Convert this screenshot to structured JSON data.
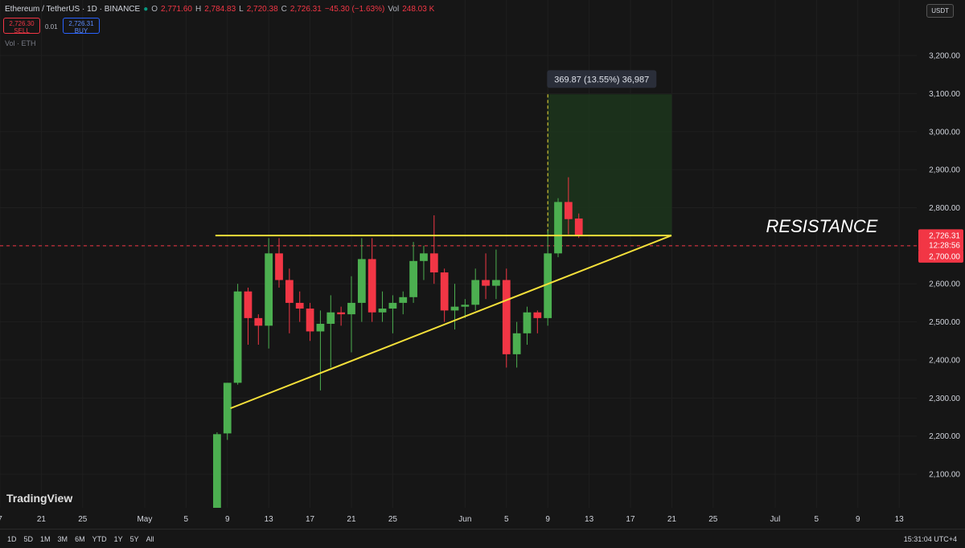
{
  "header": {
    "symbol": "Ethereum / TetherUS · 1D · BINANCE",
    "o_key": "O",
    "o": "2,771.60",
    "h_key": "H",
    "h": "2,784.83",
    "l_key": "L",
    "l": "2,720.38",
    "c_key": "C",
    "c": "2,726.31",
    "change": "−45.30 (−1.63%)",
    "vol_key": "Vol",
    "vol": "248.03 K",
    "sell_price": "2,726.30",
    "sell": "SELL",
    "qty": "0.01",
    "buy_price": "2,726.31",
    "buy": "BUY",
    "vol_indicator": "Vol · ETH",
    "currency": "USDT",
    "logo": "TradingView"
  },
  "toolbar": {
    "timeframes": [
      "1D",
      "5D",
      "1M",
      "3M",
      "6M",
      "YTD",
      "1Y",
      "5Y",
      "All"
    ],
    "time": "15:31:04 UTC+4"
  },
  "chart_data": {
    "type": "candlestick",
    "x": [
      0,
      1,
      2,
      3,
      4,
      5,
      6,
      7,
      8,
      9,
      10,
      11,
      12,
      13,
      14,
      15,
      16,
      17,
      18,
      19,
      20,
      21,
      22,
      23,
      24,
      25,
      26,
      27,
      28,
      29,
      30,
      31,
      32,
      33,
      34,
      35
    ],
    "open": [
      2010,
      2207,
      2340,
      2580,
      2510,
      2490,
      2680,
      2610,
      2550,
      2535,
      2475,
      2495,
      2525,
      2520,
      2550,
      2665,
      2525,
      2535,
      2550,
      2565,
      2660,
      2680,
      2630,
      2530,
      2540,
      2545,
      2610,
      2595,
      2610,
      2415,
      2470,
      2525,
      2510,
      2680,
      2815,
      2771.6
    ],
    "high": [
      2210,
      2340,
      2600,
      2590,
      2520,
      2720,
      2720,
      2640,
      2580,
      2550,
      2530,
      2570,
      2540,
      2620,
      2720,
      2720,
      2580,
      2570,
      2580,
      2710,
      2700,
      2780,
      2640,
      2600,
      2560,
      2640,
      2680,
      2690,
      2640,
      2500,
      2540,
      2530,
      2740,
      2825,
      2880,
      2784.83
    ],
    "low": [
      2010,
      2190,
      2335,
      2440,
      2440,
      2430,
      2590,
      2470,
      2500,
      2450,
      2320,
      2380,
      2490,
      2420,
      2500,
      2500,
      2500,
      2470,
      2520,
      2550,
      2610,
      2600,
      2500,
      2480,
      2510,
      2530,
      2560,
      2560,
      2380,
      2380,
      2440,
      2470,
      2490,
      2670,
      2730,
      2720.38
    ],
    "close": [
      2205,
      2340,
      2580,
      2510,
      2490,
      2680,
      2610,
      2550,
      2535,
      2475,
      2495,
      2525,
      2520,
      2550,
      2665,
      2525,
      2535,
      2550,
      2565,
      2660,
      2680,
      2630,
      2530,
      2540,
      2545,
      2610,
      2595,
      2610,
      2415,
      2470,
      2525,
      2510,
      2680,
      2815,
      2770,
      2726.31
    ],
    "up_color": "#4caf50",
    "down_color": "#f23645",
    "xlim": [
      -21,
      67.7
    ],
    "xticks": [
      {
        "value": -21,
        "label": "7"
      },
      {
        "value": -17,
        "label": "21"
      },
      {
        "value": -13,
        "label": "25"
      },
      {
        "value": -7,
        "label": "May"
      },
      {
        "value": -3,
        "label": "5"
      },
      {
        "value": 1,
        "label": "9"
      },
      {
        "value": 5,
        "label": "13"
      },
      {
        "value": 9,
        "label": "17"
      },
      {
        "value": 13,
        "label": "21"
      },
      {
        "value": 17,
        "label": "25"
      },
      {
        "value": 24,
        "label": "Jun"
      },
      {
        "value": 28,
        "label": "5"
      },
      {
        "value": 32,
        "label": "9"
      },
      {
        "value": 36,
        "label": "13"
      },
      {
        "value": 40,
        "label": "17"
      },
      {
        "value": 44,
        "label": "21"
      },
      {
        "value": 48,
        "label": "25"
      },
      {
        "value": 54,
        "label": "Jul"
      },
      {
        "value": 58,
        "label": "5"
      },
      {
        "value": 62,
        "label": "9"
      },
      {
        "value": 66,
        "label": "13"
      }
    ],
    "ylim": [
      2011.5,
      3345.7
    ],
    "yticks": [
      {
        "value": 2100,
        "label": "2,100.00"
      },
      {
        "value": 2200,
        "label": "2,200.00"
      },
      {
        "value": 2300,
        "label": "2,300.00"
      },
      {
        "value": 2400,
        "label": "2,400.00"
      },
      {
        "value": 2500,
        "label": "2,500.00"
      },
      {
        "value": 2600,
        "label": "2,600.00"
      },
      {
        "value": 2700,
        "label": "2,700.00"
      },
      {
        "value": 2800,
        "label": "2,800.00"
      },
      {
        "value": 2900,
        "label": "2,900.00"
      },
      {
        "value": 3000,
        "label": "3,000.00"
      },
      {
        "value": 3100,
        "label": "3,100.00"
      },
      {
        "value": 3200,
        "label": "3,200.00"
      }
    ],
    "grid": true,
    "price_label": {
      "value": 2726.31,
      "label": "2,726.31",
      "countdown": "12:28:56"
    },
    "level_line": {
      "value": 2700,
      "label": "2,700.00",
      "color": "#f23645"
    },
    "horizontal_line": {
      "x": [
        -0.16,
        43.97
      ],
      "y": [
        2727,
        2727
      ],
      "color": "#f5e03a"
    },
    "trend_line": {
      "x": [
        1.3,
        43.97
      ],
      "y": [
        2273,
        2727
      ],
      "color": "#f5e03a"
    },
    "measure": {
      "x": [
        32,
        44
      ],
      "y": [
        2727,
        3098
      ],
      "label": "369.87 (13.55%) 36,987"
    },
    "annotation": "RESISTANCE"
  }
}
